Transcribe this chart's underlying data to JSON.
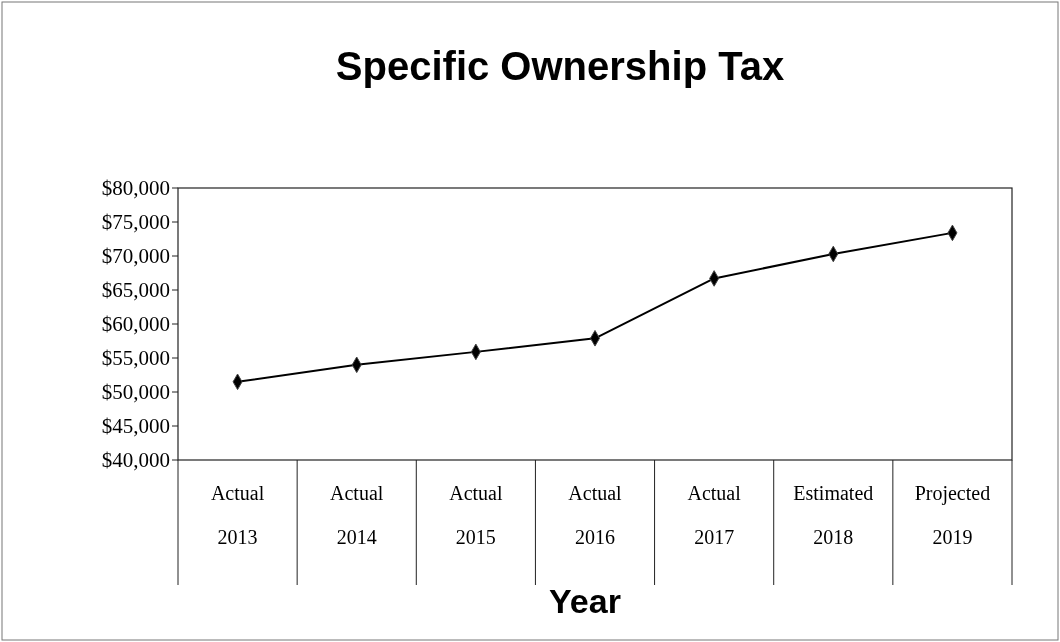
{
  "chart_data": {
    "type": "line",
    "title": "Specific Ownership Tax",
    "xlabel": "Year",
    "categories": [
      "Actual\n2013",
      "Actual\n2014",
      "Actual\n2015",
      "Actual\n2016",
      "Actual\n2017",
      "Estimated\n2018",
      "Projected\n2019"
    ],
    "series": [
      {
        "color": "#000000",
        "values": [
          51500,
          54000,
          55900,
          57900,
          66700,
          70300,
          73400
        ]
      }
    ],
    "ylim": [
      40000,
      80000
    ],
    "yticks": [
      {
        "value": 40000,
        "label": "$40,000"
      },
      {
        "value": 45000,
        "label": "$45,000"
      },
      {
        "value": 50000,
        "label": "$50,000"
      },
      {
        "value": 55000,
        "label": "$55,000"
      },
      {
        "value": 60000,
        "label": "$60,000"
      },
      {
        "value": 65000,
        "label": "$65,000"
      },
      {
        "value": 70000,
        "label": "$70,000"
      },
      {
        "value": 75000,
        "label": "$75,000"
      },
      {
        "value": 80000,
        "label": "$80,000"
      }
    ],
    "marker": "diamond",
    "line_style": "solid"
  }
}
